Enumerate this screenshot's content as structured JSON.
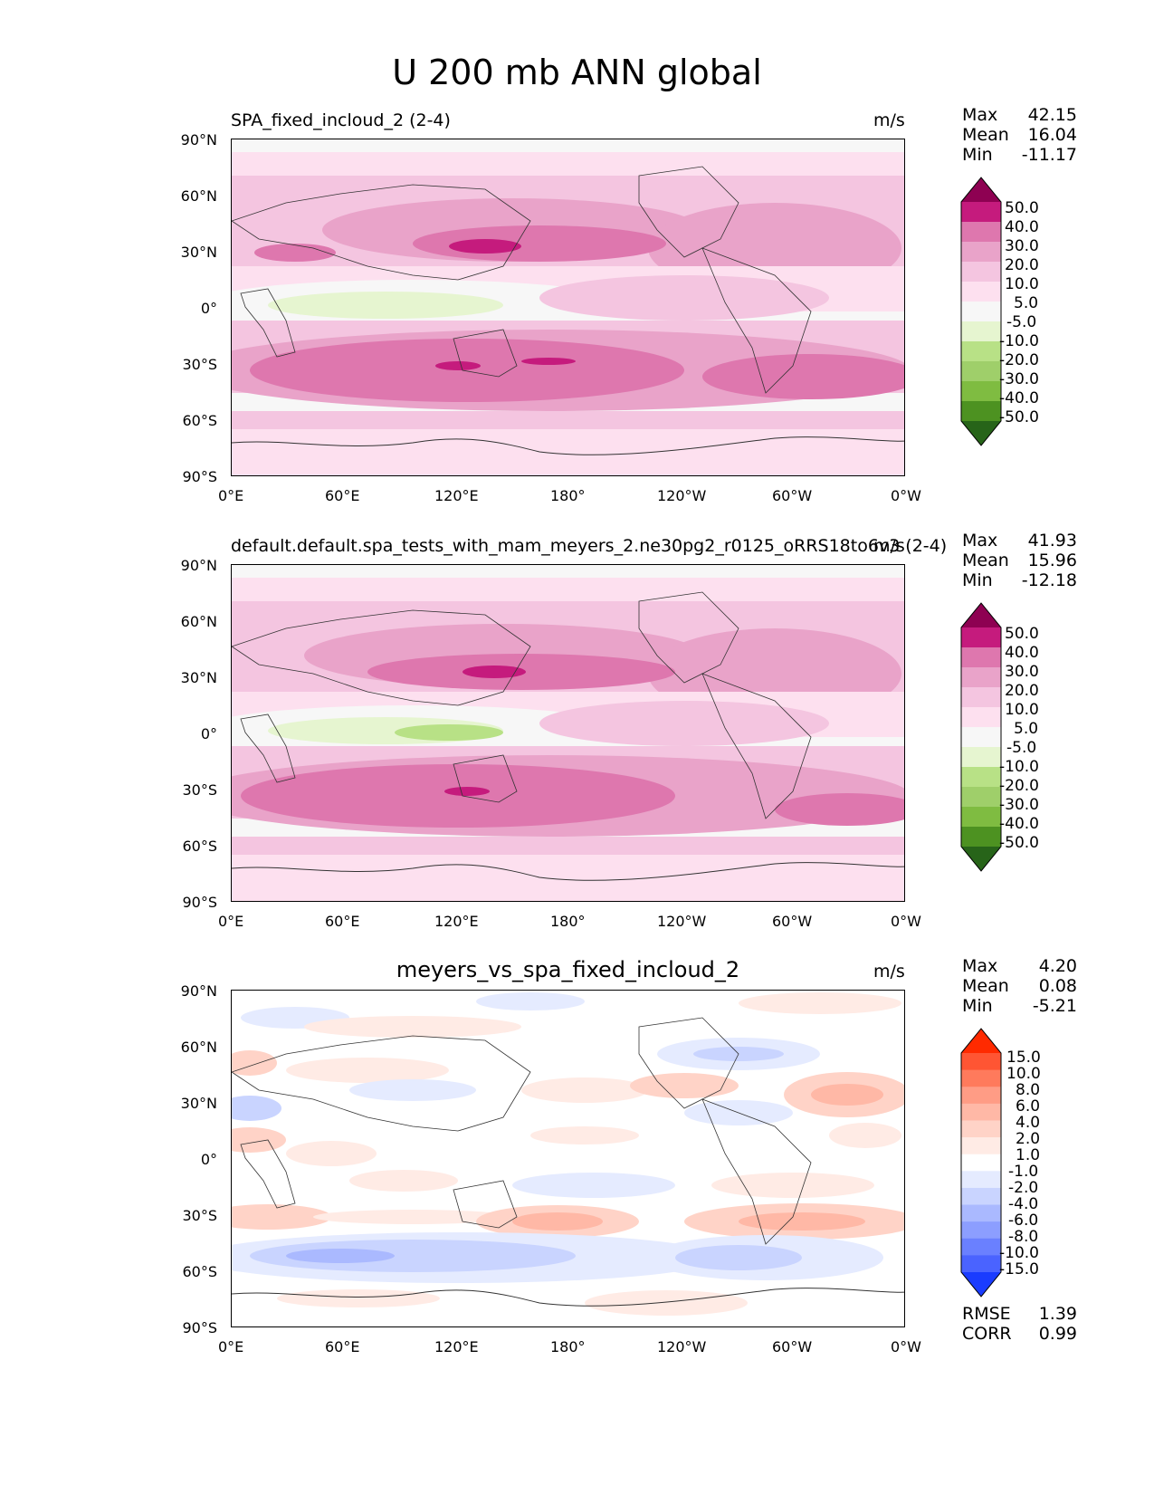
{
  "figure": {
    "title": "U 200 mb ANN global"
  },
  "panels": [
    {
      "title": "SPA_fixed_incloud_2 (2-4)",
      "units": "m/s",
      "stats": [
        {
          "label": "Max",
          "value": "42.15"
        },
        {
          "label": "Mean",
          "value": "16.04"
        },
        {
          "label": "Min",
          "value": "-11.17"
        }
      ],
      "colorbar": {
        "labels": [
          "50.0",
          "40.0",
          "30.0",
          "20.0",
          "10.0",
          "5.0",
          "-5.0",
          "-10.0",
          "-20.0",
          "-30.0",
          "-40.0",
          "-50.0"
        ],
        "colors": [
          "#8e0152",
          "#c51b7d",
          "#de77ae",
          "#e9a3c9",
          "#f4c5e0",
          "#fde0ef",
          "#f7f7f7",
          "#e6f5d0",
          "#b8e186",
          "#9fcf6a",
          "#7fbc41",
          "#4d9221",
          "#276419"
        ]
      }
    },
    {
      "title": "default.default.spa_tests_with_mam_meyers_2.ne30pg2_r0125_oRRS18to6v3 (2-4)",
      "units": "m/s",
      "stats": [
        {
          "label": "Max",
          "value": "41.93"
        },
        {
          "label": "Mean",
          "value": "15.96"
        },
        {
          "label": "Min",
          "value": "-12.18"
        }
      ],
      "colorbar": {
        "labels": [
          "50.0",
          "40.0",
          "30.0",
          "20.0",
          "10.0",
          "5.0",
          "-5.0",
          "-10.0",
          "-20.0",
          "-30.0",
          "-40.0",
          "-50.0"
        ],
        "colors": [
          "#8e0152",
          "#c51b7d",
          "#de77ae",
          "#e9a3c9",
          "#f4c5e0",
          "#fde0ef",
          "#f7f7f7",
          "#e6f5d0",
          "#b8e186",
          "#9fcf6a",
          "#7fbc41",
          "#4d9221",
          "#276419"
        ]
      }
    },
    {
      "title": "meyers_vs_spa_fixed_incloud_2",
      "units": "m/s",
      "stats": [
        {
          "label": "Max",
          "value": "4.20"
        },
        {
          "label": "Mean",
          "value": "0.08"
        },
        {
          "label": "Min",
          "value": "-5.21"
        }
      ],
      "extra_stats": [
        {
          "label": "RMSE",
          "value": "1.39"
        },
        {
          "label": "CORR",
          "value": "0.99"
        }
      ],
      "colorbar": {
        "labels": [
          "15.0",
          "10.0",
          "8.0",
          "6.0",
          "4.0",
          "2.0",
          "1.0",
          "-1.0",
          "-2.0",
          "-4.0",
          "-6.0",
          "-8.0",
          "-10.0",
          "-15.0"
        ],
        "colors": [
          "#ff2a00",
          "#ff5533",
          "#ff7a5c",
          "#ff9c85",
          "#ffb8a6",
          "#ffd3c7",
          "#ffebe5",
          "#ffffff",
          "#e5ebff",
          "#c9d4ff",
          "#aab9ff",
          "#8c9eff",
          "#6a80ff",
          "#4a63ff",
          "#1a3cff"
        ]
      }
    }
  ],
  "axes": {
    "x_ticks": [
      "0°E",
      "60°E",
      "120°E",
      "180°",
      "120°W",
      "60°W",
      "0°W"
    ],
    "y_ticks": [
      "90°N",
      "60°N",
      "30°N",
      "0°",
      "30°S",
      "60°S",
      "90°S"
    ]
  },
  "chart_data": {
    "type": "heatmap",
    "title": "U 200 mb ANN global",
    "variable": "U 200 mb",
    "units": "m/s",
    "xlim": [
      0,
      360
    ],
    "ylim": [
      -90,
      90
    ],
    "zonal_bands": [
      {
        "name": "SPA_fixed_incloud_2 (2-4)",
        "lat": [
          90,
          75,
          60,
          45,
          30,
          15,
          0,
          -15,
          -30,
          -45,
          -60,
          -75,
          -90
        ],
        "u_mean": [
          5,
          10,
          15,
          22,
          28,
          12,
          2,
          15,
          30,
          32,
          20,
          8,
          5
        ]
      },
      {
        "name": "default.default.spa_tests_with_mam_meyers_2.ne30pg2_r0125_oRRS18to6v3 (2-4)",
        "lat": [
          90,
          75,
          60,
          45,
          30,
          15,
          0,
          -15,
          -30,
          -45,
          -60,
          -75,
          -90
        ],
        "u_mean": [
          5,
          10,
          15,
          22,
          28,
          12,
          2,
          15,
          30,
          32,
          20,
          8,
          5
        ]
      },
      {
        "name": "meyers_vs_spa_fixed_incloud_2",
        "lat": [
          90,
          75,
          60,
          45,
          30,
          15,
          0,
          -15,
          -30,
          -45,
          -60,
          -75,
          -90
        ],
        "u_mean": [
          0,
          0.5,
          -0.5,
          0.5,
          1,
          0,
          0.5,
          0.5,
          1.5,
          -1.5,
          -2,
          0.5,
          0
        ]
      }
    ]
  }
}
